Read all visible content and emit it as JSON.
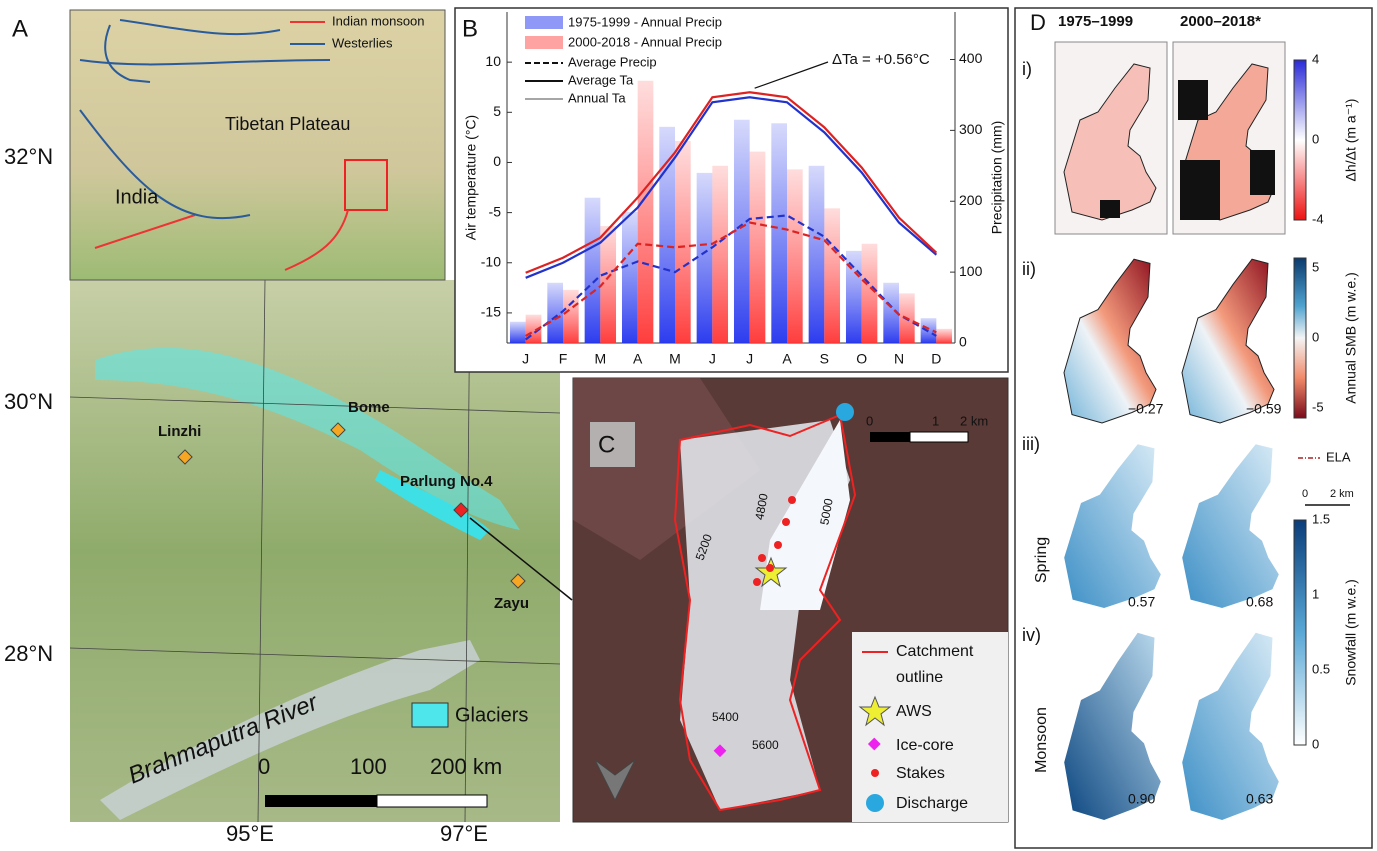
{
  "panel_a": {
    "label": "A",
    "inset_legend": [
      "Indian monsoon",
      "Westerlies"
    ],
    "inset_labels": [
      "Tibetan Plateau",
      "India"
    ],
    "latitudes": [
      "32°N",
      "30°N",
      "28°N"
    ],
    "longitudes": [
      "95°E",
      "97°E"
    ],
    "places": [
      "Linzhi",
      "Bome",
      "Parlung No.4",
      "Zayu"
    ],
    "river": "Brahmaputra River",
    "legend": "Glaciers",
    "scale": [
      "0",
      "100",
      "200 km"
    ]
  },
  "chart_data": {
    "type": "bar",
    "label": "B",
    "categories": [
      "J",
      "F",
      "M",
      "A",
      "M",
      "J",
      "J",
      "A",
      "S",
      "O",
      "N",
      "D"
    ],
    "ylabel": "Air temperature (°C)",
    "y2label": "Precipitation (mm)",
    "ylim": [
      -18,
      15
    ],
    "yticks": [
      -15,
      -10,
      -5,
      0,
      5,
      10
    ],
    "y2lim": [
      0,
      467
    ],
    "y2ticks": [
      0,
      100,
      200,
      300,
      400
    ],
    "series": [
      {
        "name": "1975-1999 - Annual Precip",
        "color": "#3344ee",
        "axis": "y2",
        "values": [
          30,
          85,
          205,
          185,
          305,
          240,
          315,
          310,
          250,
          130,
          85,
          35
        ]
      },
      {
        "name": "2000-2018 - Annual Precip",
        "color": "#ff5555",
        "axis": "y2",
        "values": [
          40,
          75,
          165,
          370,
          285,
          250,
          270,
          245,
          190,
          140,
          70,
          20
        ]
      }
    ],
    "lines": [
      {
        "color": "#2233cc",
        "axis": "y2",
        "style": "dashed",
        "values": [
          5,
          45,
          95,
          115,
          100,
          135,
          175,
          180,
          150,
          95,
          40,
          10
        ]
      },
      {
        "color": "#dd2222",
        "axis": "y2",
        "style": "dashed",
        "values": [
          10,
          40,
          80,
          140,
          135,
          140,
          170,
          160,
          145,
          90,
          40,
          15
        ]
      },
      {
        "color": "#2233cc",
        "axis": "y",
        "style": "solid",
        "values": [
          -11.5,
          -10,
          -8,
          -4.5,
          0.5,
          6,
          6.5,
          6,
          3,
          -1,
          -6,
          -9.2
        ]
      },
      {
        "color": "#dd2222",
        "axis": "y",
        "style": "solid",
        "values": [
          -11,
          -9.5,
          -7.5,
          -3.5,
          1,
          6.5,
          7,
          6.5,
          3.5,
          -0.5,
          -5.5,
          -9
        ]
      }
    ],
    "legend_extra": [
      {
        "label": "Average Precip",
        "style": "dashed"
      },
      {
        "label": "Average Ta",
        "style": "solid"
      },
      {
        "label": "Annual Ta",
        "style": "thin"
      }
    ],
    "annotation": "ΔTa = +0.56°C"
  },
  "panel_c": {
    "label": "C",
    "scale": [
      "0",
      "1",
      "2 km"
    ],
    "contours": [
      "5200",
      "4800",
      "5000",
      "5400",
      "5600"
    ],
    "legend": [
      [
        "Catchment",
        "outline"
      ],
      "AWS",
      "Ice-core",
      "Stakes",
      "Discharge"
    ]
  },
  "panel_d": {
    "label": "D",
    "columns": [
      "1975–1999",
      "2000–2018*"
    ],
    "rows": [
      "i)",
      "ii)",
      "iii)",
      "iv)"
    ],
    "seasons": [
      "Spring",
      "Monsoon"
    ],
    "values": [
      [
        "−0.27",
        "−0.59"
      ],
      [
        "0.57",
        "0.68"
      ],
      [
        "0.90",
        "0.63"
      ]
    ],
    "colorbars": [
      {
        "title": "Δh/Δt (m a⁻¹)",
        "ticks": [
          "4",
          "0",
          "-4"
        ]
      },
      {
        "title": "Annual SMB (m w.e.)",
        "ticks": [
          "5",
          "0",
          "-5"
        ]
      },
      {
        "title": "Snowfall (m w.e.)",
        "ticks": [
          "1.5",
          "1",
          "0.5",
          "0"
        ]
      }
    ],
    "ela": "ELA",
    "scale": [
      "0",
      "2 km"
    ]
  }
}
